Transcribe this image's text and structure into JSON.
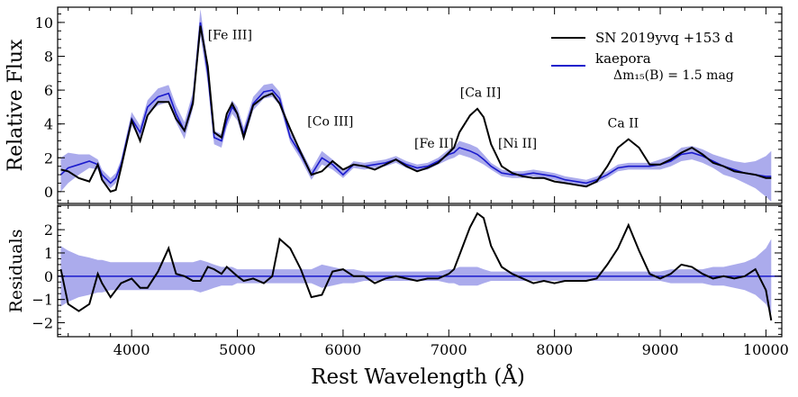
{
  "chart_data": {
    "type": "line",
    "xlabel": "Rest Wavelength (Å)",
    "xlim": [
      3300,
      10150
    ],
    "x_ticks": [
      4000,
      5000,
      6000,
      7000,
      8000,
      9000,
      10000
    ],
    "x_tick_labels": [
      "4000",
      "5000",
      "6000",
      "7000",
      "8000",
      "9000",
      "10000"
    ],
    "panels": [
      {
        "id": "top",
        "ylabel": "Relative Flux",
        "ylim": [
          -0.7,
          10.9
        ],
        "y_ticks": [
          0,
          2,
          4,
          6,
          8,
          10
        ],
        "y_tick_labels": [
          "0",
          "2",
          "4",
          "6",
          "8",
          "10"
        ],
        "series": [
          {
            "name": "SN 2019yvq +153 d",
            "color": "#000000",
            "x": [
              3330,
              3400,
              3500,
              3600,
              3680,
              3720,
              3800,
              3850,
              3900,
              4000,
              4080,
              4150,
              4250,
              4350,
              4420,
              4500,
              4580,
              4650,
              4720,
              4780,
              4850,
              4900,
              4950,
              5000,
              5060,
              5150,
              5250,
              5330,
              5400,
              5500,
              5600,
              5700,
              5800,
              5900,
              6000,
              6100,
              6200,
              6300,
              6400,
              6500,
              6600,
              6700,
              6800,
              6900,
              7000,
              7050,
              7100,
              7200,
              7270,
              7330,
              7400,
              7500,
              7600,
              7700,
              7800,
              7900,
              8000,
              8100,
              8200,
              8300,
              8400,
              8500,
              8600,
              8700,
              8800,
              8900,
              9000,
              9100,
              9200,
              9300,
              9400,
              9500,
              9600,
              9700,
              9800,
              9900,
              10000,
              10050
            ],
            "y": [
              1.3,
              1.2,
              0.8,
              0.6,
              1.6,
              0.7,
              0.0,
              0.1,
              1.4,
              4.2,
              3.0,
              4.5,
              5.3,
              5.3,
              4.3,
              3.6,
              5.2,
              9.8,
              7.4,
              3.5,
              3.2,
              4.6,
              5.2,
              4.6,
              3.2,
              5.1,
              5.6,
              5.8,
              5.2,
              3.7,
              2.3,
              1.0,
              1.2,
              1.8,
              1.3,
              1.6,
              1.5,
              1.3,
              1.6,
              1.9,
              1.5,
              1.2,
              1.4,
              1.7,
              2.3,
              2.6,
              3.5,
              4.5,
              4.9,
              4.4,
              2.8,
              1.5,
              1.1,
              0.9,
              0.8,
              0.8,
              0.6,
              0.5,
              0.4,
              0.3,
              0.6,
              1.5,
              2.6,
              3.1,
              2.6,
              1.6,
              1.6,
              1.9,
              2.3,
              2.6,
              2.2,
              1.7,
              1.5,
              1.2,
              1.1,
              1.0,
              0.8,
              0.8
            ]
          },
          {
            "name": "kaepora",
            "color": "#1a1acc",
            "band_color": "#8f8fe6",
            "x": [
              3330,
              3400,
              3500,
              3600,
              3680,
              3720,
              3800,
              3850,
              3900,
              4000,
              4080,
              4150,
              4250,
              4350,
              4420,
              4500,
              4580,
              4650,
              4720,
              4780,
              4850,
              4900,
              4950,
              5000,
              5060,
              5150,
              5250,
              5330,
              5400,
              5500,
              5600,
              5700,
              5800,
              5900,
              6000,
              6100,
              6200,
              6300,
              6400,
              6500,
              6600,
              6700,
              6800,
              6900,
              7000,
              7050,
              7100,
              7200,
              7270,
              7330,
              7400,
              7500,
              7600,
              7700,
              7800,
              7900,
              8000,
              8100,
              8200,
              8300,
              8400,
              8500,
              8600,
              8700,
              8800,
              8900,
              9000,
              9100,
              9200,
              9300,
              9400,
              9500,
              9600,
              9700,
              9800,
              9900,
              10000,
              10050
            ],
            "y": [
              1.0,
              1.4,
              1.6,
              1.8,
              1.6,
              1.0,
              0.5,
              0.8,
              1.6,
              4.3,
              3.5,
              5.0,
              5.6,
              5.8,
              4.6,
              3.6,
              5.4,
              10.0,
              7.0,
              3.2,
              3.0,
              4.2,
              5.0,
              4.6,
              3.4,
              5.2,
              5.9,
              6.0,
              5.5,
              3.2,
              2.2,
              1.0,
              2.0,
              1.6,
              1.0,
              1.6,
              1.5,
              1.6,
              1.7,
              1.9,
              1.6,
              1.4,
              1.5,
              1.8,
              2.2,
              2.3,
              2.6,
              2.4,
              2.2,
              1.9,
              1.5,
              1.1,
              1.0,
              1.0,
              1.1,
              1.0,
              0.9,
              0.7,
              0.6,
              0.5,
              0.7,
              1.0,
              1.4,
              1.5,
              1.5,
              1.5,
              1.6,
              1.8,
              2.2,
              2.3,
              2.1,
              1.8,
              1.5,
              1.3,
              1.1,
              1.0,
              0.9,
              0.9
            ],
            "spread": [
              1.0,
              0.9,
              0.6,
              0.4,
              0.3,
              0.3,
              0.3,
              0.3,
              0.3,
              0.4,
              0.4,
              0.4,
              0.5,
              0.5,
              0.5,
              0.5,
              0.5,
              0.8,
              0.6,
              0.4,
              0.4,
              0.4,
              0.4,
              0.4,
              0.4,
              0.4,
              0.4,
              0.4,
              0.4,
              0.3,
              0.3,
              0.3,
              0.4,
              0.3,
              0.2,
              0.2,
              0.2,
              0.2,
              0.2,
              0.2,
              0.2,
              0.2,
              0.2,
              0.2,
              0.3,
              0.3,
              0.4,
              0.4,
              0.4,
              0.3,
              0.2,
              0.2,
              0.2,
              0.2,
              0.2,
              0.2,
              0.2,
              0.2,
              0.2,
              0.2,
              0.2,
              0.2,
              0.2,
              0.2,
              0.2,
              0.2,
              0.3,
              0.3,
              0.4,
              0.4,
              0.4,
              0.4,
              0.5,
              0.5,
              0.6,
              0.8,
              1.2,
              1.5
            ]
          }
        ],
        "legend": {
          "placement": "top-right",
          "entries": [
            "SN 2019yvq +153 d",
            "kaepora"
          ],
          "note": "Δm₁₅(B) = 1.5 mag"
        },
        "annotations": [
          {
            "text": "[Fe III]",
            "x": 4930,
            "y": 9.0
          },
          {
            "text": "[Co III]",
            "x": 5880,
            "y": 3.9
          },
          {
            "text": "[Fe II]",
            "x": 6860,
            "y": 2.6
          },
          {
            "text": "[Ca II]",
            "x": 7300,
            "y": 5.6
          },
          {
            "text": "[Ni II]",
            "x": 7650,
            "y": 2.6
          },
          {
            "text": "Ca II",
            "x": 8650,
            "y": 3.8
          }
        ]
      },
      {
        "id": "bottom",
        "ylabel": "Residuals",
        "ylim": [
          -2.6,
          3.05
        ],
        "y_ticks": [
          -2,
          -1,
          0,
          1,
          2
        ],
        "y_tick_labels": [
          "−2",
          "−1",
          "0",
          "1",
          "2"
        ],
        "series": [
          {
            "name": "residual",
            "color": "#000000",
            "x": [
              3330,
              3400,
              3500,
              3600,
              3680,
              3720,
              3800,
              3850,
              3900,
              4000,
              4080,
              4150,
              4250,
              4350,
              4420,
              4500,
              4580,
              4650,
              4720,
              4780,
              4850,
              4900,
              4950,
              5000,
              5060,
              5150,
              5250,
              5330,
              5400,
              5500,
              5600,
              5700,
              5800,
              5900,
              6000,
              6100,
              6200,
              6300,
              6400,
              6500,
              6600,
              6700,
              6800,
              6900,
              7000,
              7050,
              7100,
              7200,
              7270,
              7330,
              7400,
              7500,
              7600,
              7700,
              7800,
              7900,
              8000,
              8100,
              8200,
              8300,
              8400,
              8500,
              8600,
              8700,
              8800,
              8900,
              9000,
              9100,
              9200,
              9300,
              9400,
              9500,
              9600,
              9700,
              9800,
              9900,
              10000,
              10050
            ],
            "y": [
              0.3,
              -1.2,
              -1.5,
              -1.2,
              0.1,
              -0.3,
              -0.9,
              -0.6,
              -0.3,
              -0.1,
              -0.5,
              -0.5,
              0.2,
              1.2,
              0.1,
              0.0,
              -0.2,
              -0.2,
              0.4,
              0.3,
              0.1,
              0.4,
              0.2,
              0.0,
              -0.2,
              -0.1,
              -0.3,
              0.0,
              1.6,
              1.2,
              0.3,
              -0.9,
              -0.8,
              0.2,
              0.3,
              0.0,
              0.0,
              -0.3,
              -0.1,
              0.0,
              -0.1,
              -0.2,
              -0.1,
              -0.1,
              0.1,
              0.3,
              0.9,
              2.1,
              2.7,
              2.5,
              1.3,
              0.4,
              0.1,
              -0.1,
              -0.3,
              -0.2,
              -0.3,
              -0.2,
              -0.2,
              -0.2,
              -0.1,
              0.5,
              1.2,
              2.2,
              1.1,
              0.1,
              -0.1,
              0.1,
              0.5,
              0.4,
              0.1,
              -0.1,
              0.0,
              -0.1,
              0.0,
              0.3,
              -0.6,
              -1.9
            ]
          }
        ],
        "band": {
          "color": "#8f8fe6",
          "x": [
            3330,
            3400,
            3500,
            3600,
            3680,
            3720,
            3800,
            3850,
            3900,
            4000,
            4080,
            4150,
            4250,
            4350,
            4420,
            4500,
            4580,
            4650,
            4720,
            4780,
            4850,
            4900,
            4950,
            5000,
            5060,
            5150,
            5250,
            5330,
            5400,
            5500,
            5600,
            5700,
            5800,
            5900,
            6000,
            6100,
            6200,
            6300,
            6400,
            6500,
            6600,
            6700,
            6800,
            6900,
            7000,
            7050,
            7100,
            7200,
            7270,
            7330,
            7400,
            7500,
            7600,
            7700,
            7800,
            7900,
            8000,
            8100,
            8200,
            8300,
            8400,
            8500,
            8600,
            8700,
            8800,
            8900,
            9000,
            9100,
            9200,
            9300,
            9400,
            9500,
            9600,
            9700,
            9800,
            9900,
            10000,
            10050
          ],
          "spread": [
            1.3,
            1.1,
            0.9,
            0.8,
            0.7,
            0.7,
            0.6,
            0.6,
            0.6,
            0.6,
            0.6,
            0.6,
            0.6,
            0.6,
            0.6,
            0.6,
            0.6,
            0.7,
            0.6,
            0.5,
            0.4,
            0.4,
            0.4,
            0.3,
            0.3,
            0.3,
            0.3,
            0.3,
            0.3,
            0.3,
            0.3,
            0.3,
            0.5,
            0.4,
            0.3,
            0.3,
            0.2,
            0.2,
            0.2,
            0.2,
            0.2,
            0.2,
            0.2,
            0.2,
            0.3,
            0.3,
            0.4,
            0.4,
            0.4,
            0.3,
            0.2,
            0.2,
            0.2,
            0.2,
            0.2,
            0.2,
            0.2,
            0.2,
            0.2,
            0.2,
            0.2,
            0.2,
            0.2,
            0.2,
            0.2,
            0.2,
            0.2,
            0.3,
            0.3,
            0.3,
            0.3,
            0.4,
            0.4,
            0.5,
            0.6,
            0.8,
            1.2,
            1.6
          ]
        },
        "zero_line": 0
      }
    ]
  }
}
